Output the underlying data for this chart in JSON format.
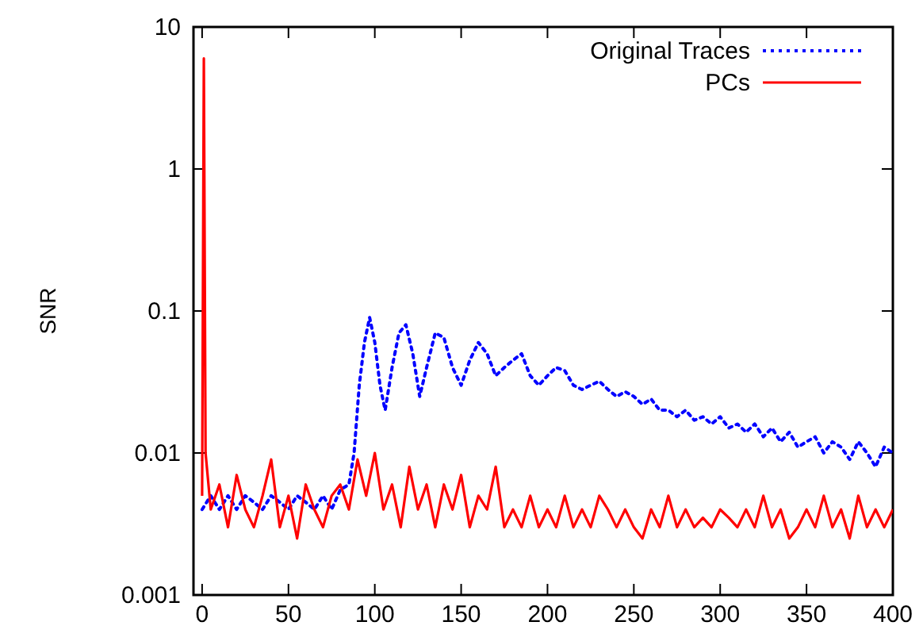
{
  "chart_data": {
    "type": "line",
    "ylabel": "SNR",
    "log": "y",
    "xlim": [
      -5,
      400
    ],
    "ylim": [
      0.001,
      10
    ],
    "xticks": [
      0,
      50,
      100,
      150,
      200,
      250,
      300,
      350,
      400
    ],
    "yticks": [
      0.001,
      0.01,
      0.1,
      1,
      10
    ],
    "legend": "top right",
    "grid": false,
    "series": [
      {
        "name": "Original Traces",
        "color": "#0000ff",
        "line_style": "dotted",
        "x": [
          0,
          5,
          10,
          15,
          20,
          25,
          30,
          35,
          40,
          45,
          50,
          55,
          60,
          65,
          70,
          75,
          80,
          85,
          88,
          91,
          94,
          97,
          100,
          103,
          106,
          110,
          114,
          118,
          122,
          126,
          130,
          135,
          140,
          145,
          150,
          155,
          160,
          165,
          170,
          175,
          180,
          185,
          190,
          195,
          200,
          205,
          210,
          215,
          220,
          225,
          230,
          235,
          240,
          245,
          250,
          255,
          260,
          265,
          270,
          275,
          280,
          285,
          290,
          295,
          300,
          305,
          310,
          315,
          320,
          325,
          330,
          335,
          340,
          345,
          350,
          355,
          360,
          365,
          370,
          375,
          380,
          385,
          390,
          395,
          400
        ],
        "values": [
          0.004,
          0.005,
          0.004,
          0.005,
          0.004,
          0.005,
          0.0045,
          0.004,
          0.005,
          0.0045,
          0.004,
          0.005,
          0.0045,
          0.004,
          0.005,
          0.004,
          0.0055,
          0.006,
          0.01,
          0.03,
          0.06,
          0.09,
          0.06,
          0.03,
          0.02,
          0.04,
          0.07,
          0.08,
          0.05,
          0.025,
          0.04,
          0.07,
          0.065,
          0.04,
          0.03,
          0.045,
          0.06,
          0.05,
          0.035,
          0.04,
          0.045,
          0.05,
          0.035,
          0.03,
          0.035,
          0.04,
          0.038,
          0.03,
          0.028,
          0.03,
          0.032,
          0.028,
          0.025,
          0.027,
          0.025,
          0.022,
          0.024,
          0.02,
          0.02,
          0.018,
          0.02,
          0.017,
          0.018,
          0.016,
          0.018,
          0.015,
          0.016,
          0.014,
          0.016,
          0.013,
          0.015,
          0.012,
          0.014,
          0.011,
          0.012,
          0.013,
          0.01,
          0.012,
          0.011,
          0.009,
          0.012,
          0.01,
          0.008,
          0.011,
          0.01
        ]
      },
      {
        "name": "PCs",
        "color": "#ff0000",
        "line_style": "solid",
        "x": [
          0,
          1,
          2,
          5,
          10,
          15,
          20,
          25,
          30,
          35,
          40,
          45,
          50,
          55,
          60,
          65,
          70,
          75,
          80,
          85,
          90,
          95,
          100,
          105,
          110,
          115,
          120,
          125,
          130,
          135,
          140,
          145,
          150,
          155,
          160,
          165,
          170,
          175,
          180,
          185,
          190,
          195,
          200,
          205,
          210,
          215,
          220,
          225,
          230,
          235,
          240,
          245,
          250,
          255,
          260,
          265,
          270,
          275,
          280,
          285,
          290,
          295,
          300,
          305,
          310,
          315,
          320,
          325,
          330,
          335,
          340,
          345,
          350,
          355,
          360,
          365,
          370,
          375,
          380,
          385,
          390,
          395,
          400
        ],
        "values": [
          0.005,
          6,
          0.01,
          0.004,
          0.006,
          0.003,
          0.007,
          0.004,
          0.003,
          0.005,
          0.009,
          0.003,
          0.005,
          0.0025,
          0.006,
          0.004,
          0.003,
          0.005,
          0.006,
          0.004,
          0.009,
          0.005,
          0.01,
          0.004,
          0.006,
          0.003,
          0.008,
          0.004,
          0.006,
          0.003,
          0.006,
          0.004,
          0.007,
          0.003,
          0.005,
          0.004,
          0.008,
          0.003,
          0.004,
          0.003,
          0.005,
          0.003,
          0.004,
          0.003,
          0.005,
          0.003,
          0.004,
          0.003,
          0.005,
          0.004,
          0.003,
          0.004,
          0.003,
          0.0025,
          0.004,
          0.003,
          0.005,
          0.003,
          0.004,
          0.003,
          0.0035,
          0.003,
          0.004,
          0.0035,
          0.003,
          0.004,
          0.003,
          0.005,
          0.003,
          0.004,
          0.0025,
          0.003,
          0.004,
          0.003,
          0.005,
          0.003,
          0.004,
          0.0025,
          0.005,
          0.003,
          0.004,
          0.003,
          0.004
        ]
      }
    ]
  }
}
